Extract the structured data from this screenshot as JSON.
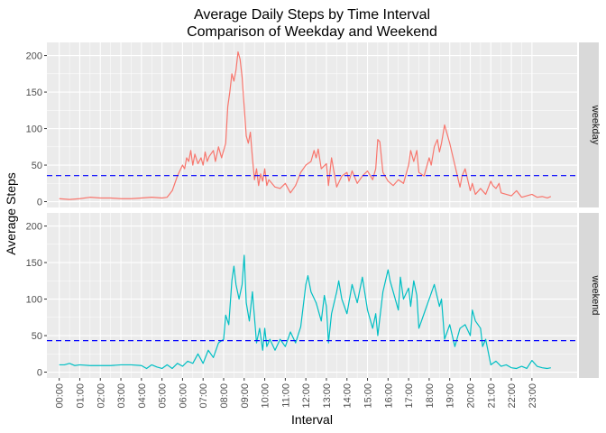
{
  "chart_data": {
    "type": "line",
    "title": "Average Daily Steps by Time Interval",
    "subtitle": "Comparison of Weekday and Weekend",
    "xlabel": "Interval",
    "ylabel": "Average Steps",
    "ylim": [
      -8,
      218
    ],
    "yticks": [
      0,
      50,
      100,
      150,
      200
    ],
    "x_tick_labels": [
      "00:00",
      "01:00",
      "02:00",
      "03:00",
      "04:00",
      "05:00",
      "06:00",
      "07:00",
      "08:00",
      "09:00",
      "10:00",
      "11:00",
      "12:00",
      "13:00",
      "14:00",
      "15:00",
      "16:00",
      "17:00",
      "18:00",
      "19:00",
      "20:00",
      "21:00",
      "22:00",
      "23:00"
    ],
    "grid": true,
    "legend": "none",
    "facets": [
      {
        "label": "weekday",
        "color": "#F8766D",
        "mean_line": 35.6,
        "mean_line_color": "#0000FF",
        "points": [
          [
            0.0,
            4
          ],
          [
            0.5,
            3
          ],
          [
            1.0,
            4
          ],
          [
            1.5,
            6
          ],
          [
            2.0,
            5
          ],
          [
            2.5,
            5
          ],
          [
            3.0,
            4
          ],
          [
            3.5,
            4
          ],
          [
            4.0,
            5
          ],
          [
            4.5,
            6
          ],
          [
            5.0,
            5
          ],
          [
            5.25,
            6
          ],
          [
            5.5,
            15
          ],
          [
            5.75,
            35
          ],
          [
            6.0,
            50
          ],
          [
            6.1,
            45
          ],
          [
            6.2,
            60
          ],
          [
            6.3,
            55
          ],
          [
            6.4,
            70
          ],
          [
            6.5,
            50
          ],
          [
            6.6,
            65
          ],
          [
            6.75,
            52
          ],
          [
            6.9,
            60
          ],
          [
            7.0,
            50
          ],
          [
            7.1,
            68
          ],
          [
            7.2,
            55
          ],
          [
            7.3,
            62
          ],
          [
            7.5,
            70
          ],
          [
            7.6,
            55
          ],
          [
            7.75,
            75
          ],
          [
            7.9,
            60
          ],
          [
            8.0,
            70
          ],
          [
            8.1,
            80
          ],
          [
            8.2,
            130
          ],
          [
            8.3,
            150
          ],
          [
            8.4,
            175
          ],
          [
            8.5,
            165
          ],
          [
            8.6,
            180
          ],
          [
            8.7,
            205
          ],
          [
            8.8,
            195
          ],
          [
            8.9,
            170
          ],
          [
            9.0,
            130
          ],
          [
            9.1,
            90
          ],
          [
            9.2,
            80
          ],
          [
            9.3,
            95
          ],
          [
            9.4,
            60
          ],
          [
            9.5,
            30
          ],
          [
            9.6,
            45
          ],
          [
            9.7,
            22
          ],
          [
            9.8,
            38
          ],
          [
            9.9,
            28
          ],
          [
            10.0,
            45
          ],
          [
            10.1,
            22
          ],
          [
            10.2,
            30
          ],
          [
            10.5,
            20
          ],
          [
            10.75,
            18
          ],
          [
            11.0,
            25
          ],
          [
            11.25,
            12
          ],
          [
            11.5,
            22
          ],
          [
            11.75,
            40
          ],
          [
            12.0,
            50
          ],
          [
            12.25,
            55
          ],
          [
            12.4,
            70
          ],
          [
            12.5,
            60
          ],
          [
            12.6,
            72
          ],
          [
            12.75,
            45
          ],
          [
            13.0,
            52
          ],
          [
            13.1,
            22
          ],
          [
            13.25,
            60
          ],
          [
            13.5,
            20
          ],
          [
            13.75,
            35
          ],
          [
            14.0,
            40
          ],
          [
            14.1,
            28
          ],
          [
            14.25,
            42
          ],
          [
            14.5,
            25
          ],
          [
            14.75,
            35
          ],
          [
            15.0,
            42
          ],
          [
            15.25,
            30
          ],
          [
            15.4,
            45
          ],
          [
            15.5,
            85
          ],
          [
            15.6,
            82
          ],
          [
            15.75,
            40
          ],
          [
            16.0,
            28
          ],
          [
            16.25,
            22
          ],
          [
            16.5,
            30
          ],
          [
            16.75,
            25
          ],
          [
            17.0,
            50
          ],
          [
            17.1,
            70
          ],
          [
            17.25,
            55
          ],
          [
            17.4,
            70
          ],
          [
            17.5,
            40
          ],
          [
            17.75,
            35
          ],
          [
            18.0,
            60
          ],
          [
            18.1,
            50
          ],
          [
            18.25,
            75
          ],
          [
            18.4,
            85
          ],
          [
            18.5,
            68
          ],
          [
            18.6,
            80
          ],
          [
            18.75,
            105
          ],
          [
            18.85,
            95
          ],
          [
            19.0,
            80
          ],
          [
            19.25,
            50
          ],
          [
            19.5,
            20
          ],
          [
            19.6,
            35
          ],
          [
            19.75,
            45
          ],
          [
            20.0,
            15
          ],
          [
            20.1,
            25
          ],
          [
            20.25,
            10
          ],
          [
            20.5,
            18
          ],
          [
            20.75,
            10
          ],
          [
            21.0,
            28
          ],
          [
            21.1,
            22
          ],
          [
            21.25,
            18
          ],
          [
            21.4,
            25
          ],
          [
            21.5,
            12
          ],
          [
            21.75,
            10
          ],
          [
            22.0,
            8
          ],
          [
            22.25,
            15
          ],
          [
            22.5,
            6
          ],
          [
            22.75,
            8
          ],
          [
            23.0,
            10
          ],
          [
            23.25,
            6
          ],
          [
            23.5,
            7
          ],
          [
            23.75,
            5
          ],
          [
            23.92,
            7
          ]
        ]
      },
      {
        "label": "weekend",
        "color": "#00BFC4",
        "mean_line": 43.1,
        "mean_line_color": "#0000FF",
        "points": [
          [
            0.0,
            10
          ],
          [
            0.25,
            10
          ],
          [
            0.5,
            12
          ],
          [
            0.75,
            9
          ],
          [
            1.0,
            10
          ],
          [
            1.5,
            9
          ],
          [
            2.0,
            9
          ],
          [
            2.5,
            9
          ],
          [
            3.0,
            10
          ],
          [
            3.5,
            10
          ],
          [
            4.0,
            9
          ],
          [
            4.25,
            5
          ],
          [
            4.5,
            10
          ],
          [
            4.75,
            7
          ],
          [
            5.0,
            5
          ],
          [
            5.25,
            10
          ],
          [
            5.5,
            5
          ],
          [
            5.75,
            12
          ],
          [
            6.0,
            8
          ],
          [
            6.25,
            15
          ],
          [
            6.5,
            12
          ],
          [
            6.75,
            25
          ],
          [
            7.0,
            12
          ],
          [
            7.25,
            30
          ],
          [
            7.5,
            20
          ],
          [
            7.75,
            40
          ],
          [
            8.0,
            45
          ],
          [
            8.1,
            78
          ],
          [
            8.25,
            65
          ],
          [
            8.4,
            125
          ],
          [
            8.5,
            145
          ],
          [
            8.6,
            120
          ],
          [
            8.75,
            100
          ],
          [
            8.9,
            120
          ],
          [
            9.0,
            160
          ],
          [
            9.1,
            95
          ],
          [
            9.25,
            70
          ],
          [
            9.4,
            110
          ],
          [
            9.5,
            75
          ],
          [
            9.6,
            40
          ],
          [
            9.75,
            60
          ],
          [
            9.9,
            30
          ],
          [
            10.0,
            60
          ],
          [
            10.1,
            35
          ],
          [
            10.25,
            45
          ],
          [
            10.5,
            30
          ],
          [
            10.75,
            45
          ],
          [
            11.0,
            35
          ],
          [
            11.25,
            55
          ],
          [
            11.5,
            40
          ],
          [
            11.75,
            62
          ],
          [
            12.0,
            120
          ],
          [
            12.1,
            132
          ],
          [
            12.25,
            110
          ],
          [
            12.5,
            95
          ],
          [
            12.75,
            70
          ],
          [
            12.9,
            105
          ],
          [
            13.0,
            90
          ],
          [
            13.1,
            40
          ],
          [
            13.25,
            80
          ],
          [
            13.5,
            110
          ],
          [
            13.6,
            125
          ],
          [
            13.75,
            100
          ],
          [
            14.0,
            80
          ],
          [
            14.25,
            120
          ],
          [
            14.4,
            105
          ],
          [
            14.5,
            95
          ],
          [
            14.75,
            130
          ],
          [
            15.0,
            85
          ],
          [
            15.25,
            60
          ],
          [
            15.4,
            80
          ],
          [
            15.5,
            50
          ],
          [
            15.75,
            110
          ],
          [
            16.0,
            140
          ],
          [
            16.1,
            125
          ],
          [
            16.25,
            110
          ],
          [
            16.5,
            85
          ],
          [
            16.6,
            130
          ],
          [
            16.75,
            100
          ],
          [
            17.0,
            115
          ],
          [
            17.1,
            90
          ],
          [
            17.25,
            125
          ],
          [
            17.4,
            105
          ],
          [
            17.5,
            60
          ],
          [
            17.75,
            80
          ],
          [
            18.0,
            100
          ],
          [
            18.25,
            120
          ],
          [
            18.5,
            90
          ],
          [
            18.6,
            100
          ],
          [
            18.75,
            45
          ],
          [
            19.0,
            65
          ],
          [
            19.25,
            35
          ],
          [
            19.5,
            60
          ],
          [
            19.75,
            65
          ],
          [
            20.0,
            50
          ],
          [
            20.1,
            85
          ],
          [
            20.25,
            70
          ],
          [
            20.5,
            60
          ],
          [
            20.6,
            35
          ],
          [
            20.75,
            45
          ],
          [
            21.0,
            10
          ],
          [
            21.25,
            15
          ],
          [
            21.5,
            8
          ],
          [
            21.75,
            10
          ],
          [
            22.0,
            6
          ],
          [
            22.25,
            5
          ],
          [
            22.5,
            8
          ],
          [
            22.75,
            5
          ],
          [
            23.0,
            16
          ],
          [
            23.25,
            8
          ],
          [
            23.5,
            6
          ],
          [
            23.75,
            5
          ],
          [
            23.92,
            6
          ]
        ]
      }
    ]
  }
}
